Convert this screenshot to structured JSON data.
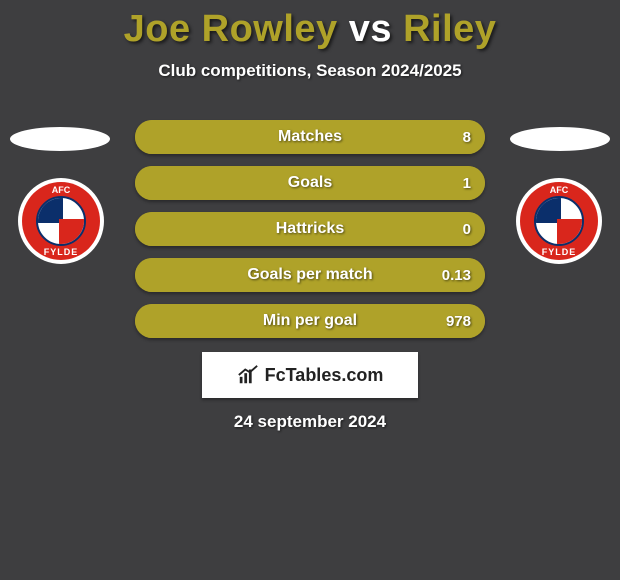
{
  "background_color": "#3e3e40",
  "header": {
    "player1": "Joe Rowley",
    "vs": "vs",
    "player2": "Riley",
    "player1_color": "#afa229",
    "vs_color": "#ffffff",
    "player2_color": "#afa229",
    "subtitle": "Club competitions, Season 2024/2025"
  },
  "avatars": {
    "left_placeholder_color": "#ffffff",
    "right_placeholder_color": "#ffffff"
  },
  "club": {
    "top_text": "AFC",
    "bottom_text": "FYLDE",
    "outer_ring": "#d9261c",
    "bg": "#ffffff"
  },
  "stats": {
    "bar_color_player1": "#afa229",
    "bar_color_player2": "#afa229",
    "base_color": "#afa229",
    "text_color": "#ffffff",
    "rows": [
      {
        "label": "Matches",
        "left": "",
        "right": "8",
        "left_pct": 0,
        "right_pct": 100
      },
      {
        "label": "Goals",
        "left": "",
        "right": "1",
        "left_pct": 0,
        "right_pct": 100
      },
      {
        "label": "Hattricks",
        "left": "",
        "right": "0",
        "left_pct": 0,
        "right_pct": 100
      },
      {
        "label": "Goals per match",
        "left": "",
        "right": "0.13",
        "left_pct": 0,
        "right_pct": 100
      },
      {
        "label": "Min per goal",
        "left": "",
        "right": "978",
        "left_pct": 0,
        "right_pct": 100
      }
    ]
  },
  "brand": {
    "text": "FcTables.com",
    "box_bg": "#ffffff",
    "icon_color": "#222222"
  },
  "date": "24 september 2024"
}
